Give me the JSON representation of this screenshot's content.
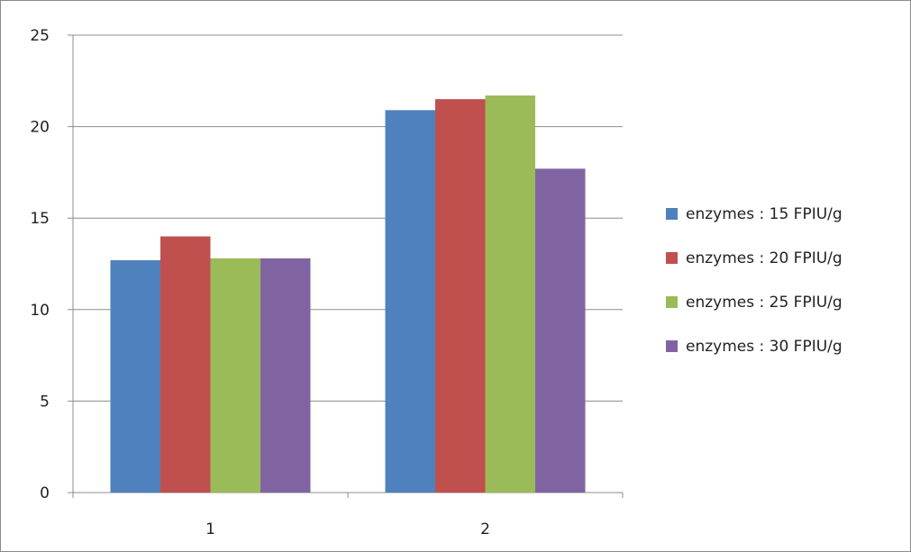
{
  "chart_data": {
    "type": "bar",
    "categories": [
      "1",
      "2"
    ],
    "series": [
      {
        "name": "enzymes : 15 FPIU/g",
        "color": "#4F81BD",
        "values": [
          12.7,
          20.9
        ]
      },
      {
        "name": "enzymes : 20 FPIU/g",
        "color": "#C0504D",
        "values": [
          14.0,
          21.5
        ]
      },
      {
        "name": "enzymes : 25 FPIU/g",
        "color": "#9BBB59",
        "values": [
          12.8,
          21.7
        ]
      },
      {
        "name": "enzymes : 30 FPIU/g",
        "color": "#8064A2",
        "values": [
          12.8,
          17.7
        ]
      }
    ],
    "ylim": [
      0,
      25
    ],
    "yticks": [
      0,
      5,
      10,
      15,
      20,
      25
    ],
    "grid": true,
    "legend_position": "right"
  }
}
